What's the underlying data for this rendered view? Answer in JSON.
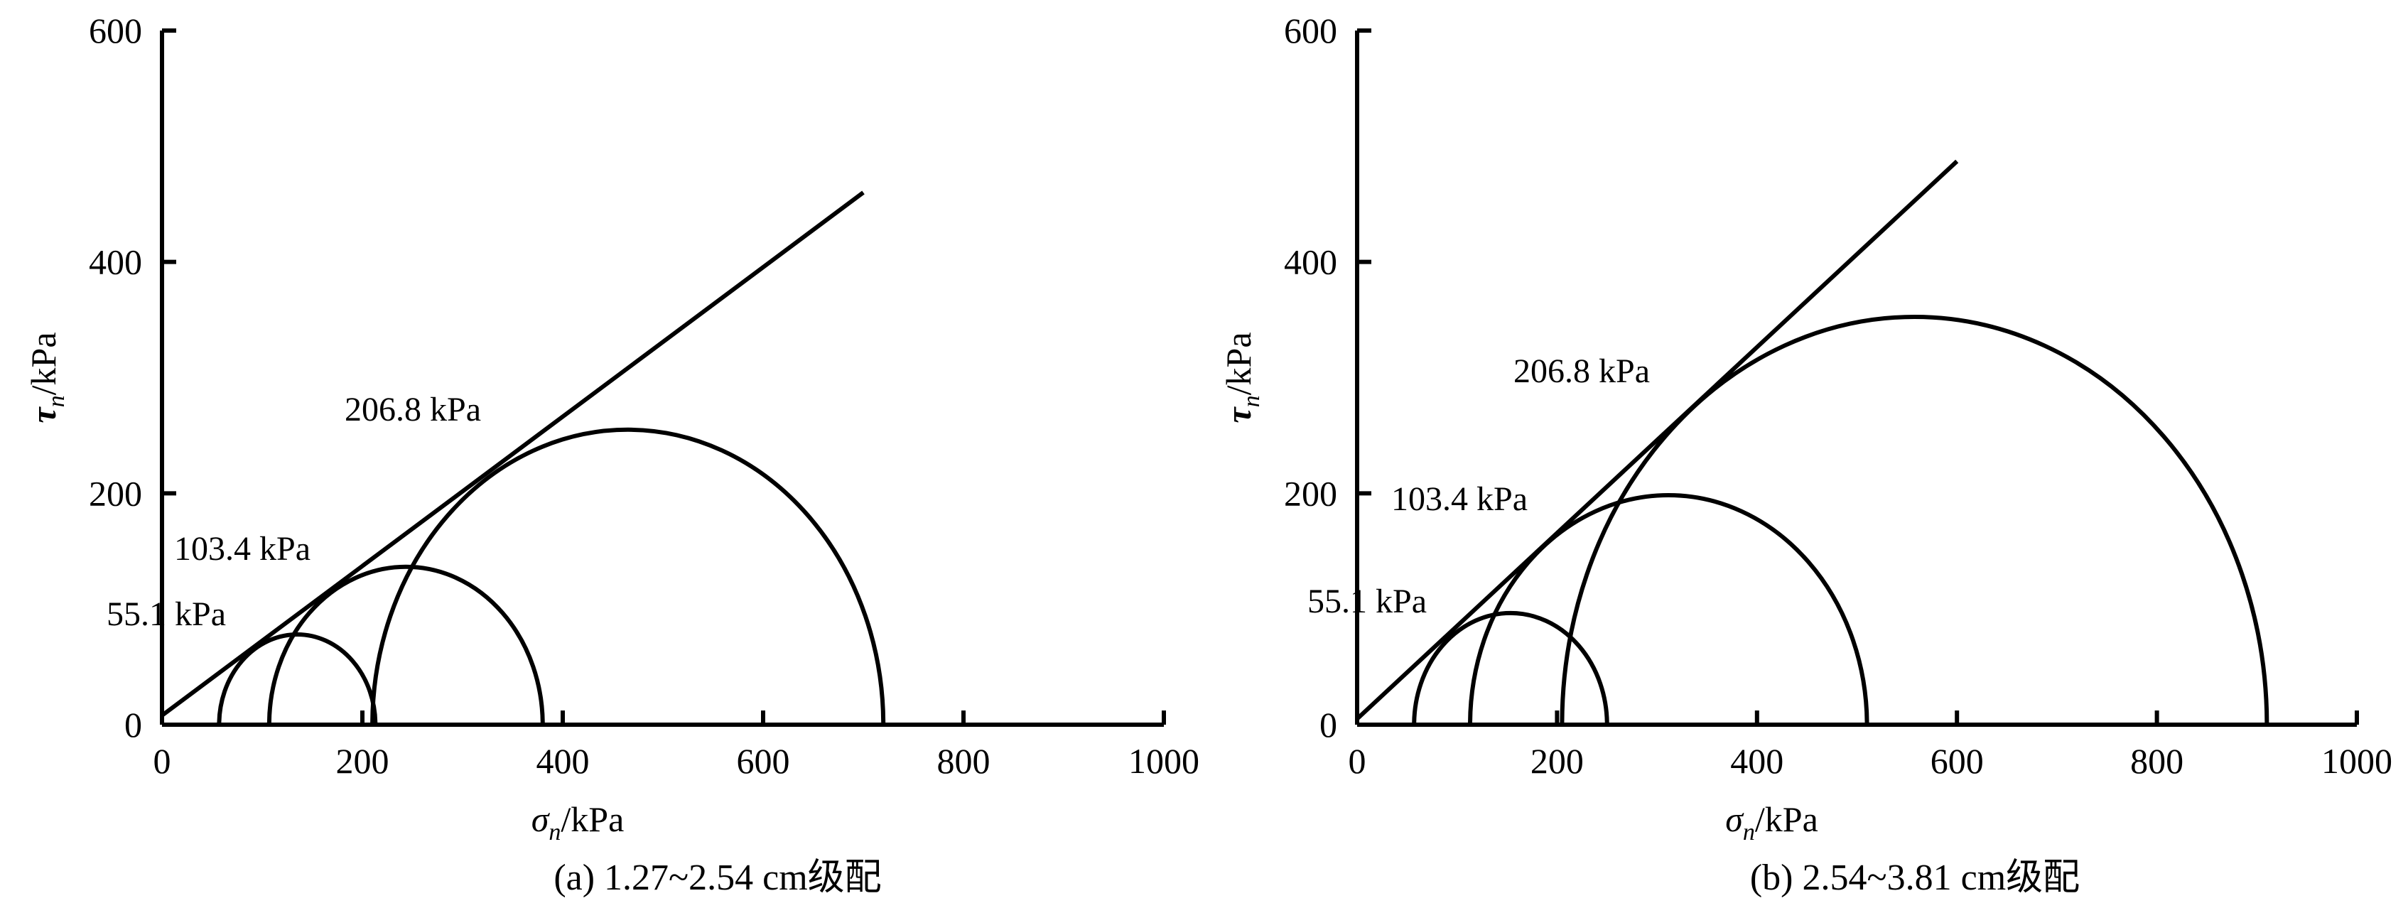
{
  "chart_data": [
    {
      "type": "line",
      "caption": "(a) 1.27~2.54 cm级配",
      "xlabel": {
        "symbol": "σ",
        "sub": "n",
        "unit": "/kPa"
      },
      "ylabel": {
        "symbol": "τ",
        "sub": "n",
        "unit": "/kPa"
      },
      "xlim": [
        0,
        1000
      ],
      "ylim": [
        0,
        600
      ],
      "x_ticks": [
        0,
        200,
        400,
        600,
        800,
        1000
      ],
      "y_ticks": [
        0,
        200,
        400,
        600
      ],
      "grid": false,
      "circles": [
        {
          "label": "55.1 kPa",
          "sigma3": 57,
          "sigma1": 213
        },
        {
          "label": "103.4 kPa",
          "sigma3": 107,
          "sigma1": 380
        },
        {
          "label": "206.8 kPa",
          "sigma3": 210,
          "sigma1": 720
        }
      ],
      "envelope": {
        "x": [
          0,
          700
        ],
        "y": [
          8,
          460
        ]
      }
    },
    {
      "type": "line",
      "caption": "(b) 2.54~3.81 cm级配",
      "xlabel": {
        "symbol": "σ",
        "sub": "n",
        "unit": "/kPa"
      },
      "ylabel": {
        "symbol": "τ",
        "sub": "n",
        "unit": "/kPa"
      },
      "xlim": [
        0,
        1000
      ],
      "ylim": [
        0,
        600
      ],
      "x_ticks": [
        0,
        200,
        400,
        600,
        800,
        1000
      ],
      "y_ticks": [
        0,
        200,
        400,
        600
      ],
      "grid": false,
      "circles": [
        {
          "label": "55.1 kPa",
          "sigma3": 57,
          "sigma1": 250
        },
        {
          "label": "103.4 kPa",
          "sigma3": 113,
          "sigma1": 510
        },
        {
          "label": "206.8 kPa",
          "sigma3": 205,
          "sigma1": 910
        }
      ],
      "envelope": {
        "x": [
          0,
          600
        ],
        "y": [
          5,
          487
        ]
      }
    }
  ]
}
